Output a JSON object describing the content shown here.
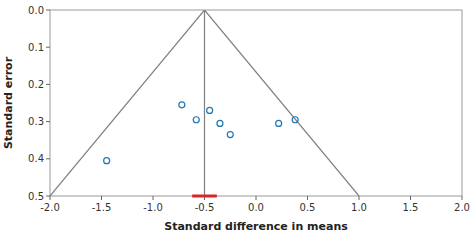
{
  "chart_data": {
    "type": "scatter",
    "xlabel": "Standard difference in means",
    "ylabel": "Standard error",
    "x": [
      -1.45,
      -0.72,
      -0.58,
      -0.45,
      -0.35,
      -0.25,
      0.22,
      0.38
    ],
    "values": [
      0.405,
      0.255,
      0.295,
      0.27,
      0.305,
      0.335,
      0.305,
      0.295
    ],
    "funnel": {
      "apex_x": -0.5,
      "apex_y": 0.0,
      "base_y": 0.5,
      "left_base_x": -2.0,
      "right_base_x": 1.0
    },
    "center_line_x": -0.5,
    "mean_line": {
      "y": 0.5,
      "x1": -0.62,
      "x2": -0.38
    },
    "xlim": [
      -2.0,
      2.0
    ],
    "ylim": [
      0.5,
      0.0
    ],
    "xticks": [
      {
        "value": -2.0,
        "label": "-2.0"
      },
      -1.5,
      {
        "value": -1.0,
        "label": "-1.0"
      },
      -0.5,
      {
        "value": 0.0,
        "label": "0.0"
      },
      0.5,
      {
        "value": 1.0,
        "label": "1.0"
      },
      1.5,
      {
        "value": 2.0,
        "label": "2.0"
      }
    ],
    "yticks": [
      {
        "value": 0.0,
        "label": "0.0"
      },
      0.1,
      0.2,
      0.3,
      0.4,
      0.5
    ],
    "grid": false
  }
}
